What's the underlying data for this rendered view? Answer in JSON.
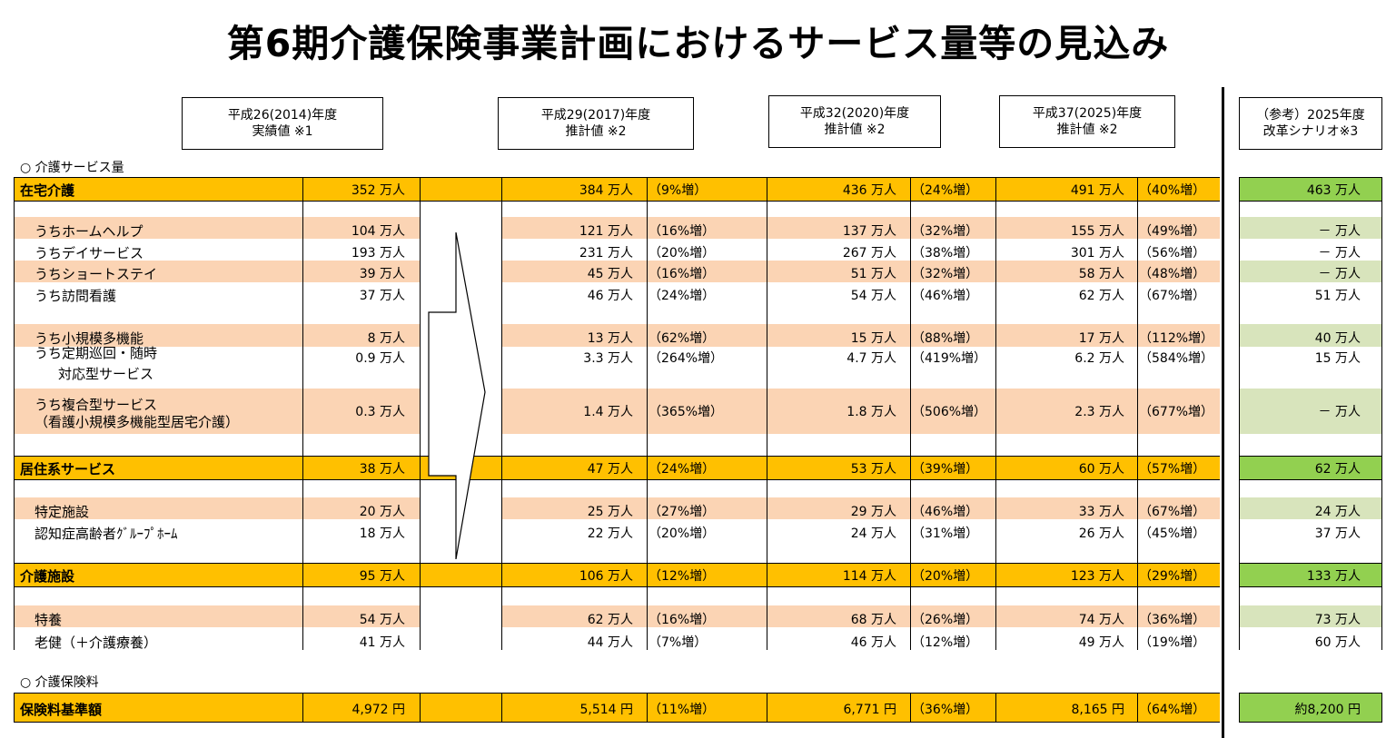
{
  "title": "第6期介護保険事業計画におけるサービス量等の見込み",
  "headers": [
    {
      "line1": "平成26(2014)年度",
      "line2": "実績値 ※1"
    },
    {
      "line1": "平成29(2017)年度",
      "line2": "推計値 ※2"
    },
    {
      "line1": "平成32(2020)年度",
      "line2": "推計値 ※2"
    },
    {
      "line1": "平成37(2025)年度",
      "line2": "推計値 ※2"
    },
    {
      "line1": "（参考）2025年度",
      "line2": "改革シナリオ※3"
    }
  ],
  "section_service": "○ 介護サービス量",
  "section_premium": "○ 介護保険料",
  "colors": {
    "orange": "#FFC000",
    "peach": "#FBD4B4",
    "green": "#92D050",
    "lightgreen": "#D8E4BC"
  },
  "rows": [
    {
      "label": "在宅介護",
      "v26": "352 万人",
      "v29": "384 万人",
      "p29": "（9%増）",
      "v32": "436 万人",
      "p32": "（24%増）",
      "v37": "491 万人",
      "p37": "（40%増）",
      "ref": "463 万人"
    },
    {
      "label": "うちホームヘルプ",
      "v26": "104 万人",
      "v29": "121 万人",
      "p29": "（16%増）",
      "v32": "137 万人",
      "p32": "（32%増）",
      "v37": "155 万人",
      "p37": "（49%増）",
      "ref": "－ 万人"
    },
    {
      "label": "うちデイサービス",
      "v26": "193 万人",
      "v29": "231 万人",
      "p29": "（20%増）",
      "v32": "267 万人",
      "p32": "（38%増）",
      "v37": "301 万人",
      "p37": "（56%増）",
      "ref": "－ 万人"
    },
    {
      "label": "うちショートステイ",
      "v26": "39 万人",
      "v29": "45 万人",
      "p29": "（16%増）",
      "v32": "51 万人",
      "p32": "（32%増）",
      "v37": "58 万人",
      "p37": "（48%増）",
      "ref": "－ 万人"
    },
    {
      "label": "うち訪問看護",
      "v26": "37 万人",
      "v29": "46 万人",
      "p29": "（24%増）",
      "v32": "54 万人",
      "p32": "（46%増）",
      "v37": "62 万人",
      "p37": "（67%増）",
      "ref": "51 万人"
    },
    {
      "label": "うち小規模多機能",
      "v26": "8 万人",
      "v29": "13 万人",
      "p29": "（62%増）",
      "v32": "15 万人",
      "p32": "（88%増）",
      "v37": "17 万人",
      "p37": "（112%増）",
      "ref": "40 万人"
    },
    {
      "label": "うち定期巡回・随時",
      "label2": "対応型サービス",
      "v26": "0.9 万人",
      "v29": "3.3 万人",
      "p29": "（264%増）",
      "v32": "4.7 万人",
      "p32": "（419%増）",
      "v37": "6.2 万人",
      "p37": "（584%増）",
      "ref": "15 万人"
    },
    {
      "label": "うち複合型サービス",
      "label2": "（看護小規模多機能型居宅介護）",
      "v26": "0.3 万人",
      "v29": "1.4 万人",
      "p29": "（365%増）",
      "v32": "1.8 万人",
      "p32": "（506%増）",
      "v37": "2.3 万人",
      "p37": "（677%増）",
      "ref": "－ 万人"
    },
    {
      "label": "居住系サービス",
      "v26": "38 万人",
      "v29": "47 万人",
      "p29": "（24%増）",
      "v32": "53 万人",
      "p32": "（39%増）",
      "v37": "60 万人",
      "p37": "（57%増）",
      "ref": "62 万人"
    },
    {
      "label": "特定施設",
      "v26": "20 万人",
      "v29": "25 万人",
      "p29": "（27%増）",
      "v32": "29 万人",
      "p32": "（46%増）",
      "v37": "33 万人",
      "p37": "（67%増）",
      "ref": "24 万人"
    },
    {
      "label": "認知症高齢者ｸﾞﾙｰﾌﾟﾎｰﾑ",
      "v26": "18 万人",
      "v29": "22 万人",
      "p29": "（20%増）",
      "v32": "24 万人",
      "p32": "（31%増）",
      "v37": "26 万人",
      "p37": "（45%増）",
      "ref": "37 万人"
    },
    {
      "label": "介護施設",
      "v26": "95 万人",
      "v29": "106 万人",
      "p29": "（12%増）",
      "v32": "114 万人",
      "p32": "（20%増）",
      "v37": "123 万人",
      "p37": "（29%増）",
      "ref": "133 万人"
    },
    {
      "label": "特養",
      "v26": "54 万人",
      "v29": "62 万人",
      "p29": "（16%増）",
      "v32": "68 万人",
      "p32": "（26%増）",
      "v37": "74 万人",
      "p37": "（36%増）",
      "ref": "73 万人"
    },
    {
      "label": "老健（＋介護療養）",
      "v26": "41 万人",
      "v29": "44 万人",
      "p29": "（7%増）",
      "v32": "46 万人",
      "p32": "（12%増）",
      "v37": "49 万人",
      "p37": "（19%増）",
      "ref": "60 万人"
    },
    {
      "label": "保険料基準額",
      "v26": "4,972 円",
      "v29": "5,514 円",
      "p29": "（11%増）",
      "v32": "6,771 円",
      "p32": "（36%増）",
      "v37": "8,165 円",
      "p37": "（64%増）",
      "ref": "約8,200 円"
    }
  ]
}
